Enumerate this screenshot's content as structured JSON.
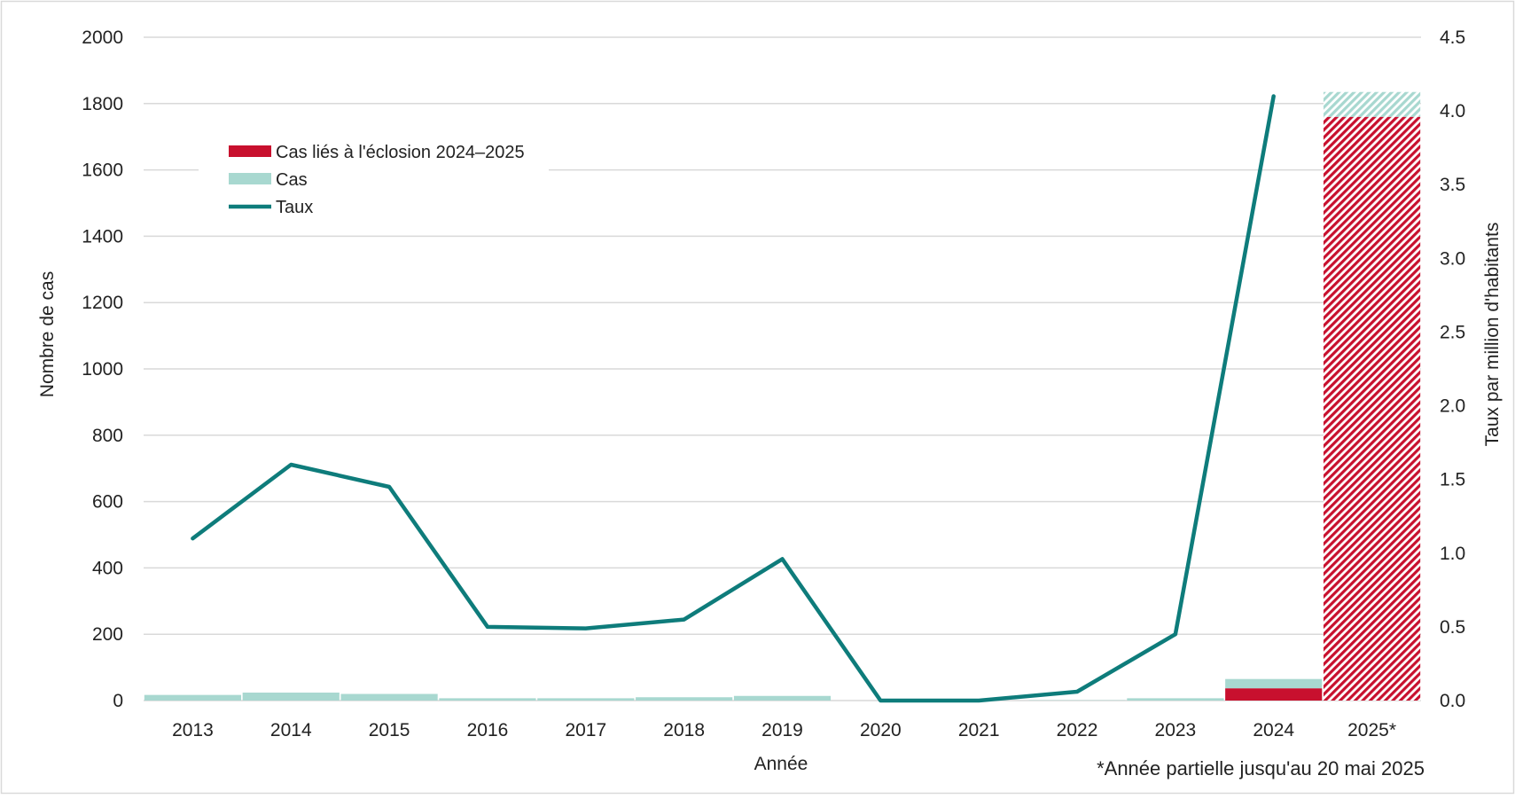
{
  "chart_data": {
    "type": "bar",
    "categories": [
      "2013",
      "2014",
      "2015",
      "2016",
      "2017",
      "2018",
      "2019",
      "2020",
      "2021",
      "2022",
      "2023",
      "2024",
      "2025*"
    ],
    "series": [
      {
        "name": "Cas liés à l'éclosion 2024–2025",
        "kind": "bar",
        "axis": "left",
        "color": "#C8102E",
        "values": [
          0,
          0,
          0,
          0,
          0,
          0,
          0,
          0,
          0,
          0,
          0,
          37,
          1760
        ]
      },
      {
        "name": "Cas",
        "kind": "bar",
        "axis": "left",
        "color": "#A8D8D0",
        "values": [
          17,
          24,
          20,
          7,
          7,
          10,
          14,
          0,
          0,
          1,
          7,
          28,
          75
        ]
      },
      {
        "name": "Taux",
        "kind": "line",
        "axis": "right",
        "color": "#0E7C7B",
        "values": [
          1.1,
          1.6,
          1.45,
          0.5,
          0.49,
          0.55,
          0.96,
          0.0,
          0.0,
          0.06,
          0.45,
          4.1,
          null
        ]
      }
    ],
    "hatched_categories": [
      "2025*"
    ],
    "xlabel": "Année",
    "ylabel": "Nombre de cas",
    "y2label": "Taux par million d'habitants",
    "ylim": [
      0,
      2000
    ],
    "y2lim": [
      0,
      4.5
    ],
    "yticks": [
      "0",
      "200",
      "400",
      "600",
      "800",
      "1000",
      "1200",
      "1400",
      "1600",
      "1800",
      "2000"
    ],
    "y2ticks": [
      "0.0",
      "0.5",
      "1.0",
      "1.5",
      "2.0",
      "2.5",
      "3.0",
      "3.5",
      "4.0",
      "4.5"
    ],
    "grid": true,
    "legend": {
      "placement": "top-left",
      "entries": [
        {
          "label": "Cas liés à l'éclosion 2024–2025",
          "swatch": "bar",
          "color": "#C8102E"
        },
        {
          "label": "Cas",
          "swatch": "bar",
          "color": "#A8D8D0"
        },
        {
          "label": "Taux",
          "swatch": "line",
          "color": "#0E7C7B"
        }
      ]
    },
    "footnote": "*Année partielle jusqu'au 20 mai 2025"
  }
}
